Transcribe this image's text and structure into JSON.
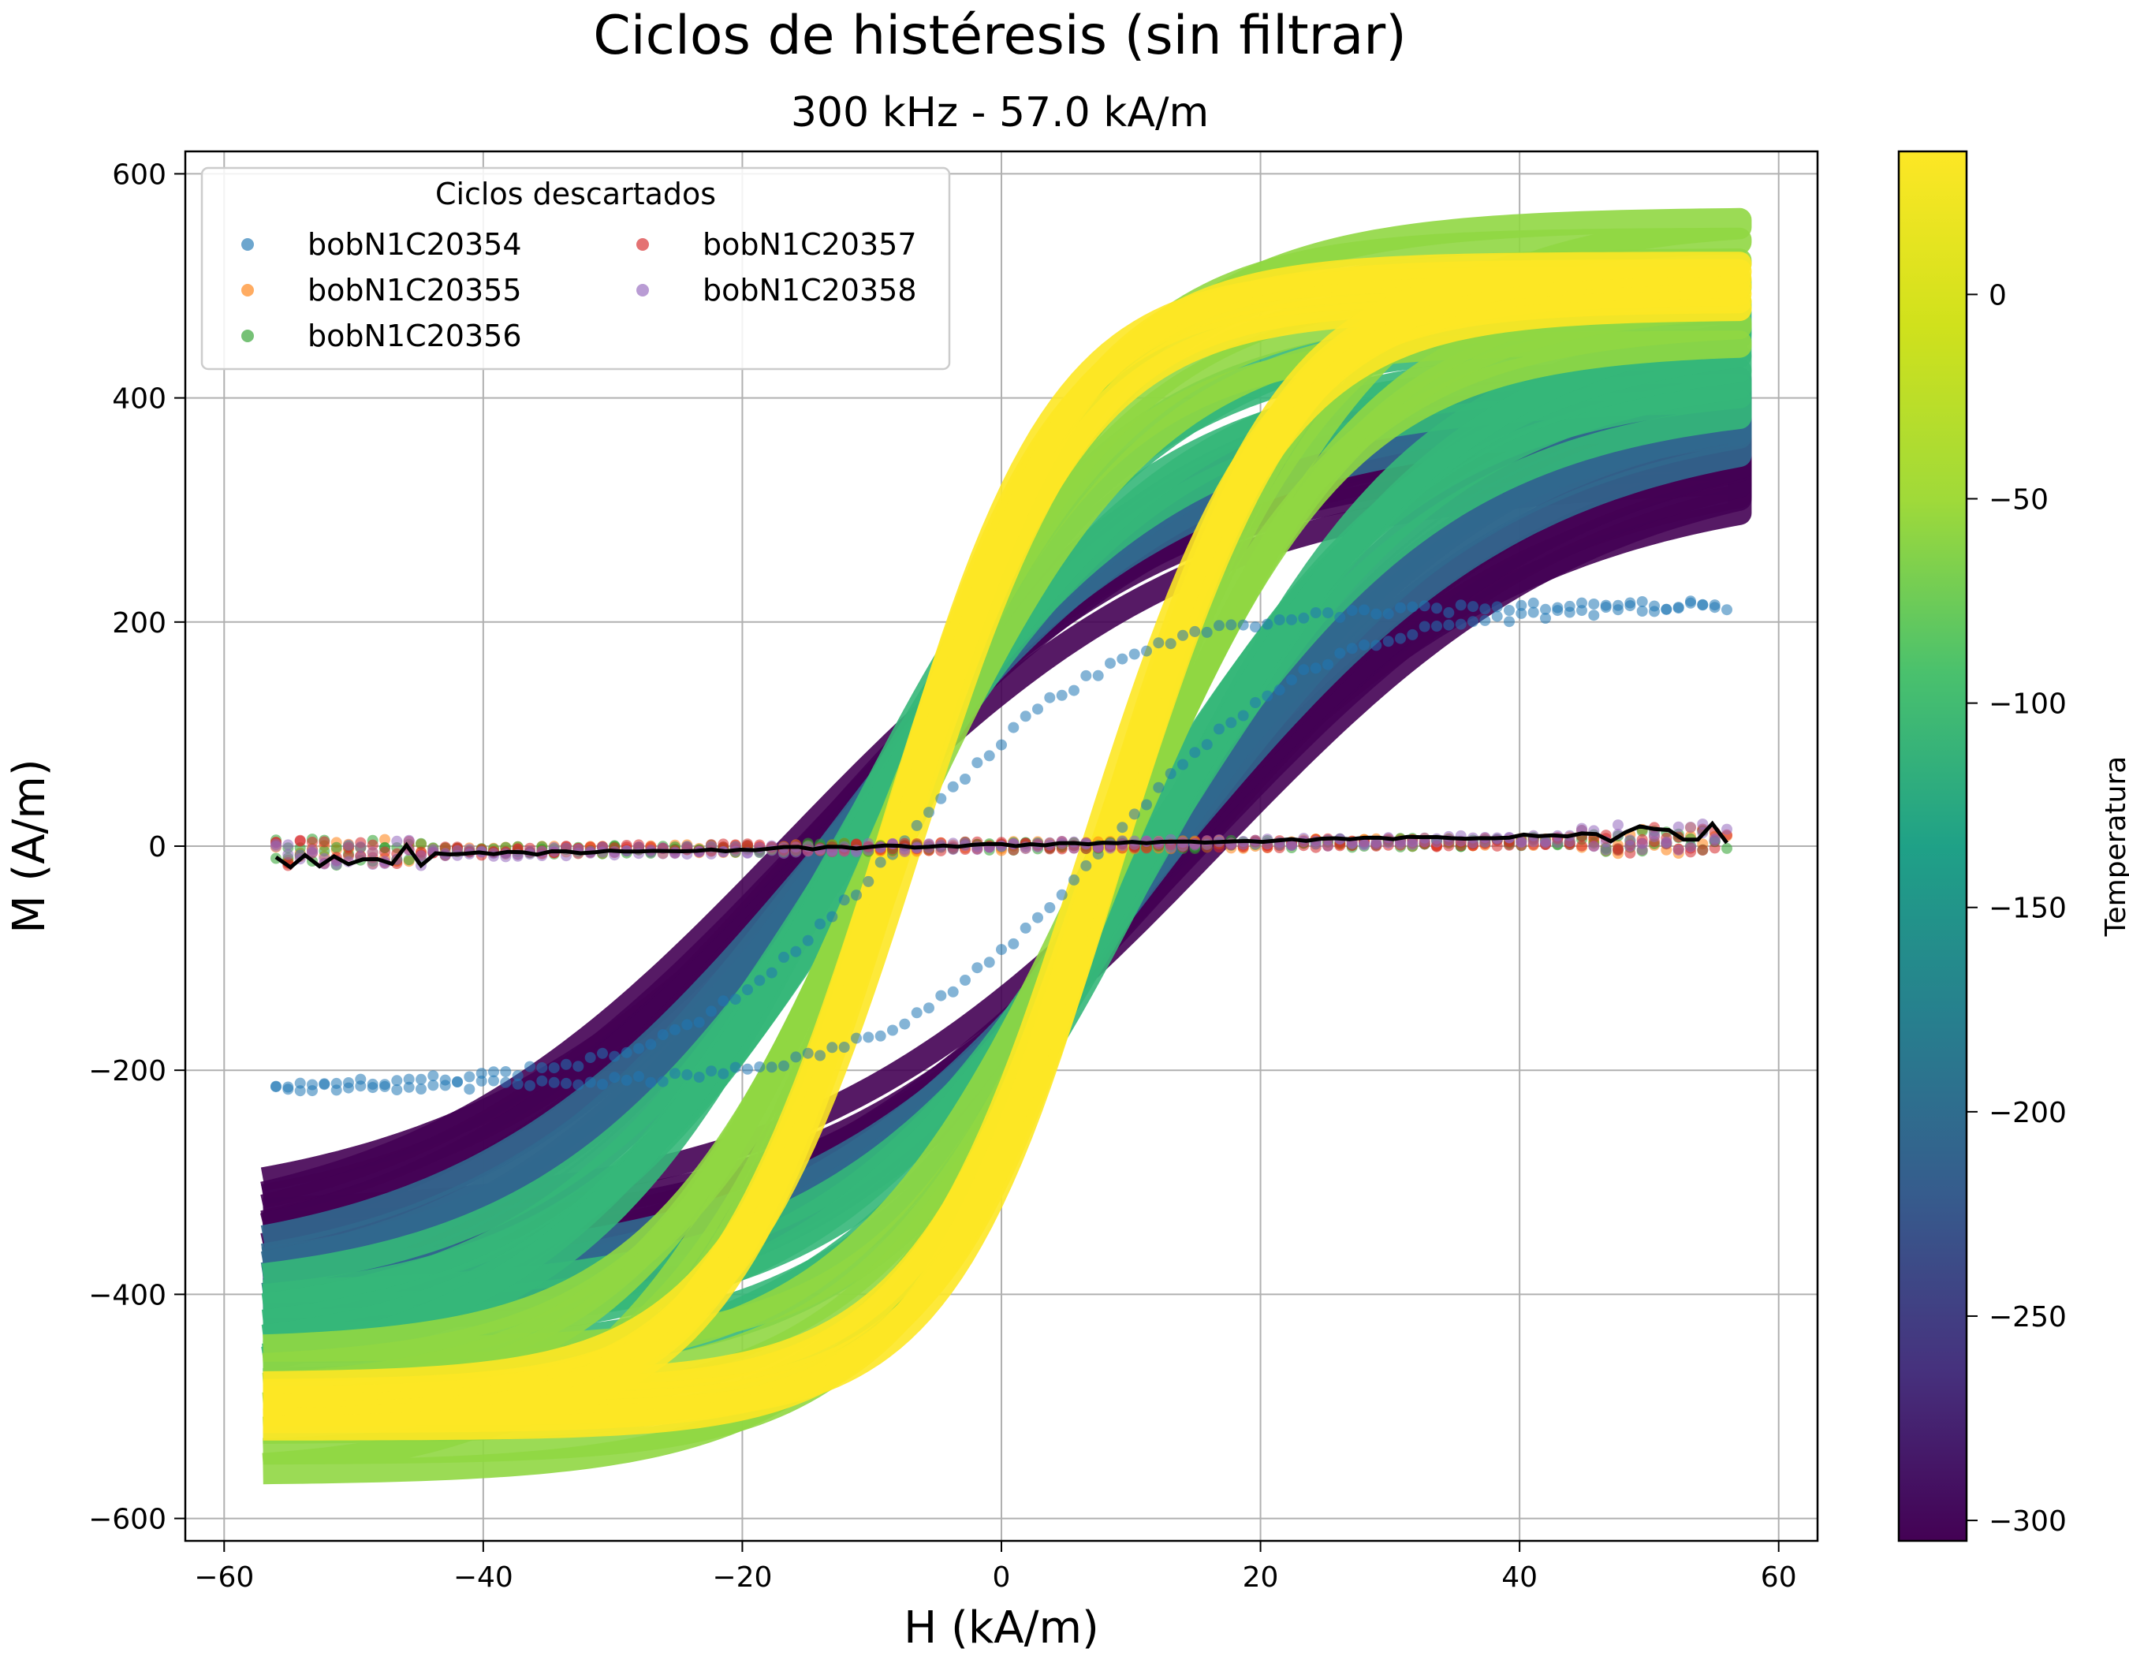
{
  "chart_data": {
    "type": "scatter",
    "title": "Ciclos de histéresis (sin filtrar)",
    "subtitle": "300 kHz - 57.0 kA/m",
    "xlabel": "H (kA/m)",
    "ylabel": "M (A/m)",
    "xlim": [
      -63,
      63
    ],
    "ylim": [
      -620,
      620
    ],
    "xticks": [
      -60,
      -40,
      -20,
      0,
      20,
      40,
      60
    ],
    "yticks": [
      -600,
      -400,
      -200,
      0,
      200,
      400,
      600
    ],
    "grid": true,
    "h_max": 57,
    "legend": {
      "title": "Ciclos descartados",
      "placement": "upper-left",
      "entries": [
        {
          "name": "bobN1C20354",
          "color": "#1f77b4"
        },
        {
          "name": "bobN1C20355",
          "color": "#ff7f0e"
        },
        {
          "name": "bobN1C20356",
          "color": "#2ca02c"
        },
        {
          "name": "bobN1C20357",
          "color": "#d62728"
        },
        {
          "name": "bobN1C20358",
          "color": "#9467bd"
        }
      ]
    },
    "colorbar": {
      "label": "Temperatura",
      "colormap": "viridis",
      "range": [
        -305,
        35
      ],
      "ticks": [
        0,
        -50,
        -100,
        -150,
        -200,
        -250,
        -300
      ]
    },
    "loop_families": [
      {
        "temperature": -305,
        "color": "#440154",
        "ms_range": [
          330,
          395
        ],
        "hc": 15,
        "h_sat": 30
      },
      {
        "temperature": -180,
        "color": "#31688e",
        "ms_range": [
          380,
          420
        ],
        "hc": 13,
        "h_sat": 26
      },
      {
        "temperature": -90,
        "color": "#35b779",
        "ms_range": [
          400,
          480
        ],
        "hc": 11,
        "h_sat": 23
      },
      {
        "temperature": -20,
        "color": "#90d743",
        "ms_range": [
          450,
          560
        ],
        "hc": 8.5,
        "h_sat": 18
      },
      {
        "temperature": 30,
        "color": "#fde725",
        "ms_range": [
          480,
          520
        ],
        "hc": 8,
        "h_sat": 13
      }
    ],
    "discarded_loops": [
      {
        "name": "bobN1C20354",
        "ms": 215,
        "hc": 8,
        "h_sat": 17
      },
      {
        "name": "bobN1C20355",
        "slope": 0.1
      },
      {
        "name": "bobN1C20356",
        "slope": 0.1
      },
      {
        "name": "bobN1C20357",
        "slope": 0.1
      },
      {
        "name": "bobN1C20358",
        "slope": 0.15
      }
    ],
    "reference_line": {
      "color": "#000000",
      "m_start": -10,
      "m_end": 12
    }
  }
}
